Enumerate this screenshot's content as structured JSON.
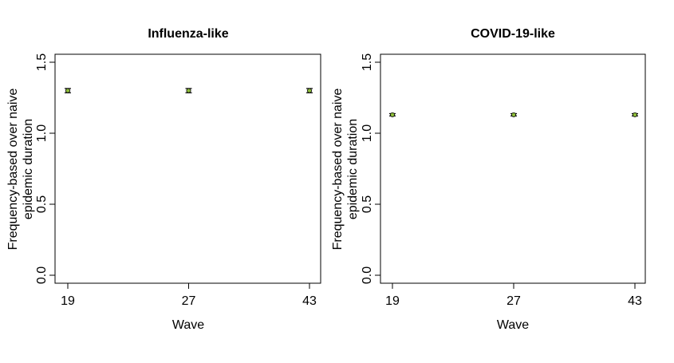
{
  "chart_data": [
    {
      "type": "scatter",
      "title": "Influenza-like",
      "xlabel": "Wave",
      "ylabel_lines": [
        "Frequency-based over naive",
        "epidemic duration"
      ],
      "x_categories": [
        "19",
        "27",
        "43"
      ],
      "y_ticks": [
        "0.0",
        "0.5",
        "1.0",
        "1.5"
      ],
      "ylim": [
        0,
        1.55
      ],
      "grid": false,
      "series": [
        {
          "values": [
            1.3,
            1.3,
            1.3
          ],
          "err_low": [
            1.285,
            1.285,
            1.285
          ],
          "err_high": [
            1.315,
            1.315,
            1.315
          ]
        }
      ]
    },
    {
      "type": "scatter",
      "title": "COVID-19-like",
      "xlabel": "Wave",
      "ylabel_lines": [
        "Frequency-based over naive",
        "epidemic duration"
      ],
      "x_categories": [
        "19",
        "27",
        "43"
      ],
      "y_ticks": [
        "0.0",
        "0.5",
        "1.0",
        "1.5"
      ],
      "ylim": [
        0,
        1.55
      ],
      "grid": false,
      "series": [
        {
          "values": [
            1.13,
            1.13,
            1.13
          ],
          "err_low": [
            1.122,
            1.122,
            1.122
          ],
          "err_high": [
            1.138,
            1.138,
            1.138
          ]
        }
      ]
    }
  ],
  "colors": {
    "point_fill": "#8fbf3a",
    "point_stroke": "#000000",
    "axis": "#000000"
  }
}
